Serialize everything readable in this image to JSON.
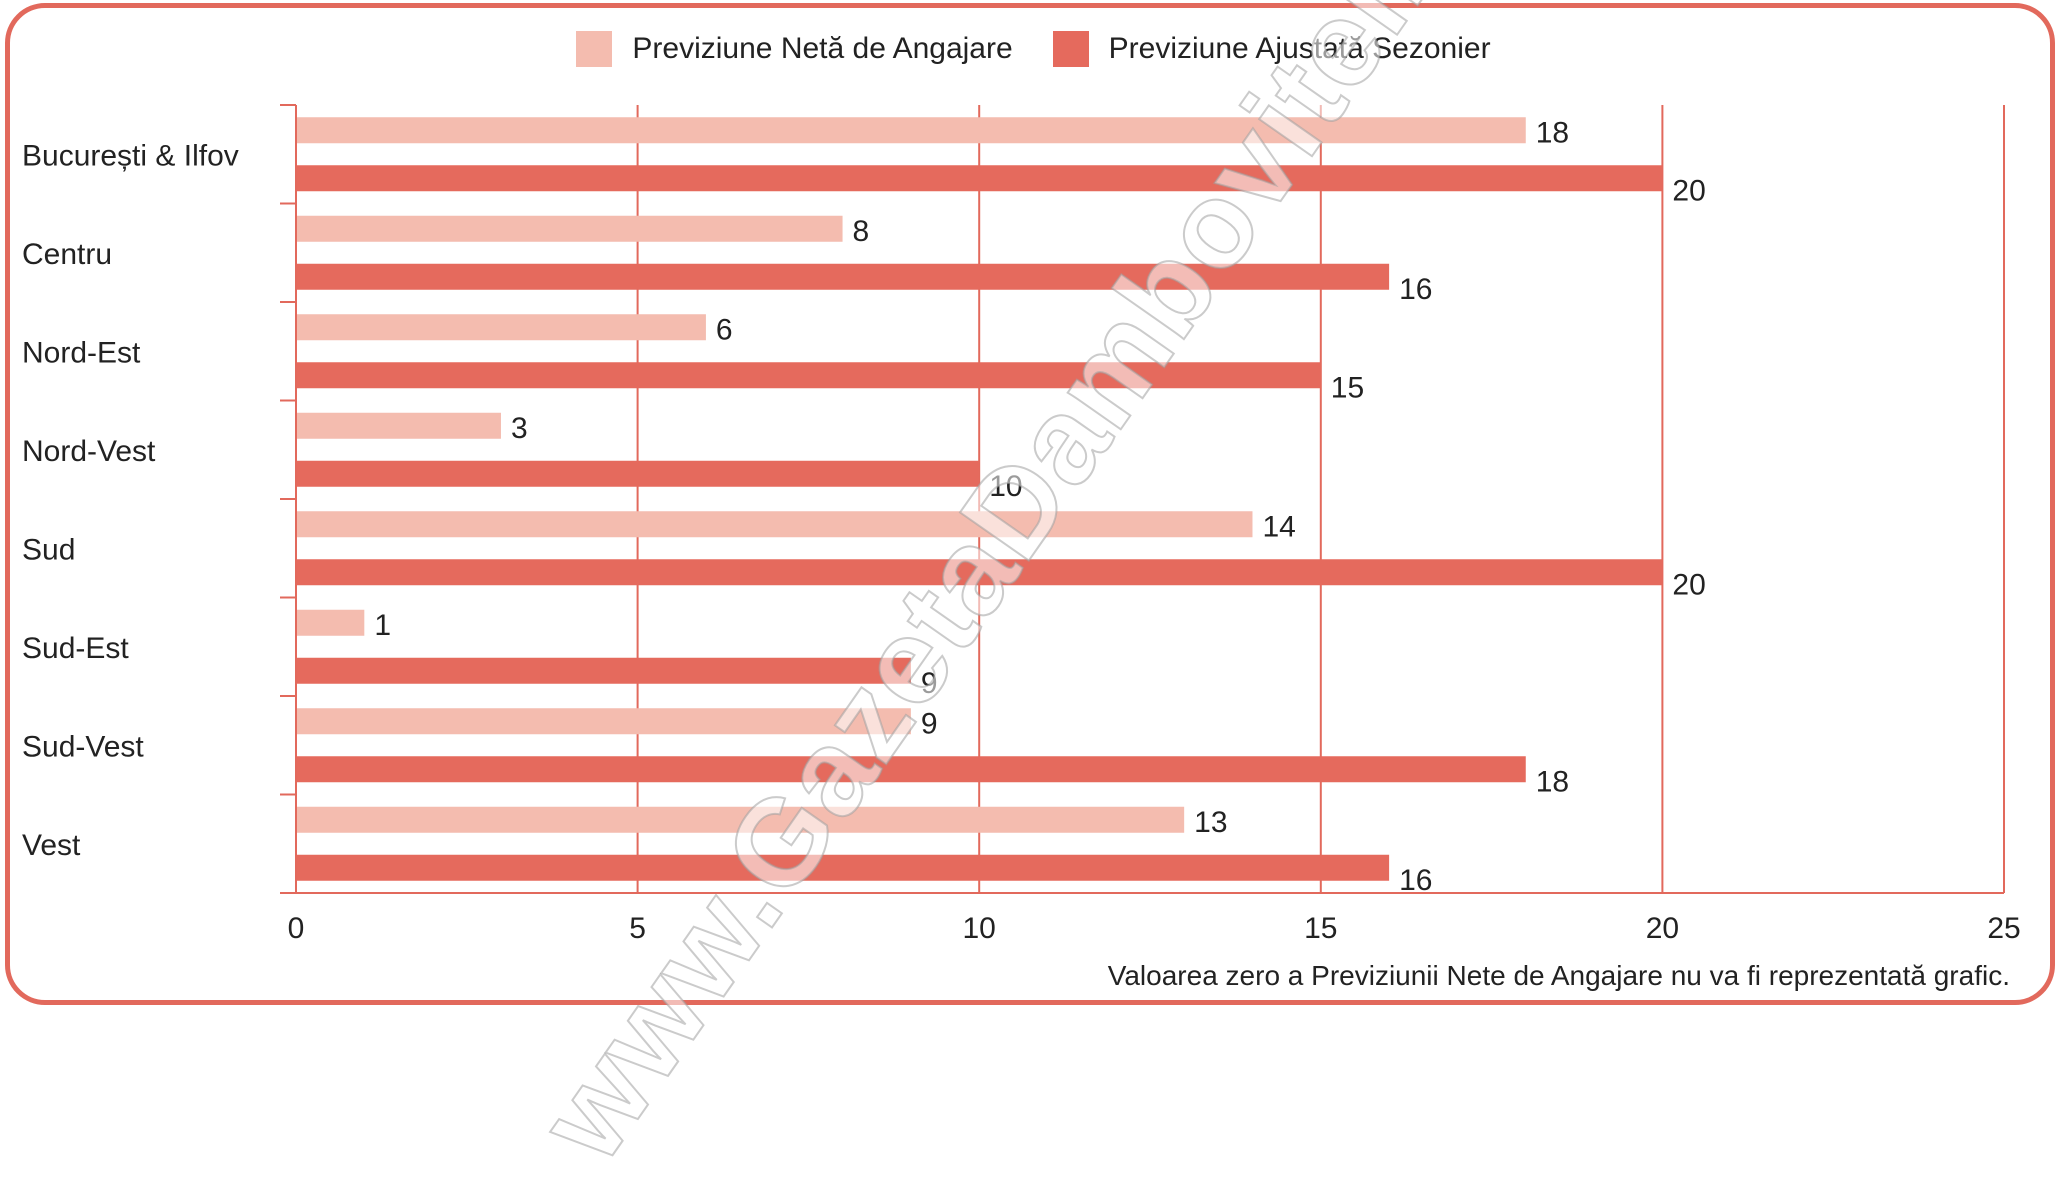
{
  "chart_data": {
    "type": "bar",
    "orientation": "horizontal",
    "categories": [
      "București & Ilfov",
      "Centru",
      "Nord-Est",
      "Nord-Vest",
      "Sud",
      "Sud-Est",
      "Sud-Vest",
      "Vest"
    ],
    "series": [
      {
        "name": "Previziune Netă de Angajare",
        "color": "#f4bcaf",
        "values": [
          18,
          8,
          6,
          3,
          14,
          1,
          9,
          13
        ]
      },
      {
        "name": "Previziune Ajustată Sezonier",
        "color": "#e56a5d",
        "values": [
          20,
          16,
          15,
          10,
          20,
          9,
          18,
          16
        ]
      }
    ],
    "xlim": [
      0,
      25
    ],
    "xticks": [
      0,
      5,
      10,
      15,
      20,
      25
    ],
    "grid": true,
    "legend": "top-center",
    "footnote": "Valoarea zero a Previziunii Nete de Angajare nu va fi reprezentată grafic."
  },
  "watermark": "www.GazetaDambovitei.ro",
  "colors": {
    "frame": "#e2695c",
    "axis": "#e2695c"
  }
}
